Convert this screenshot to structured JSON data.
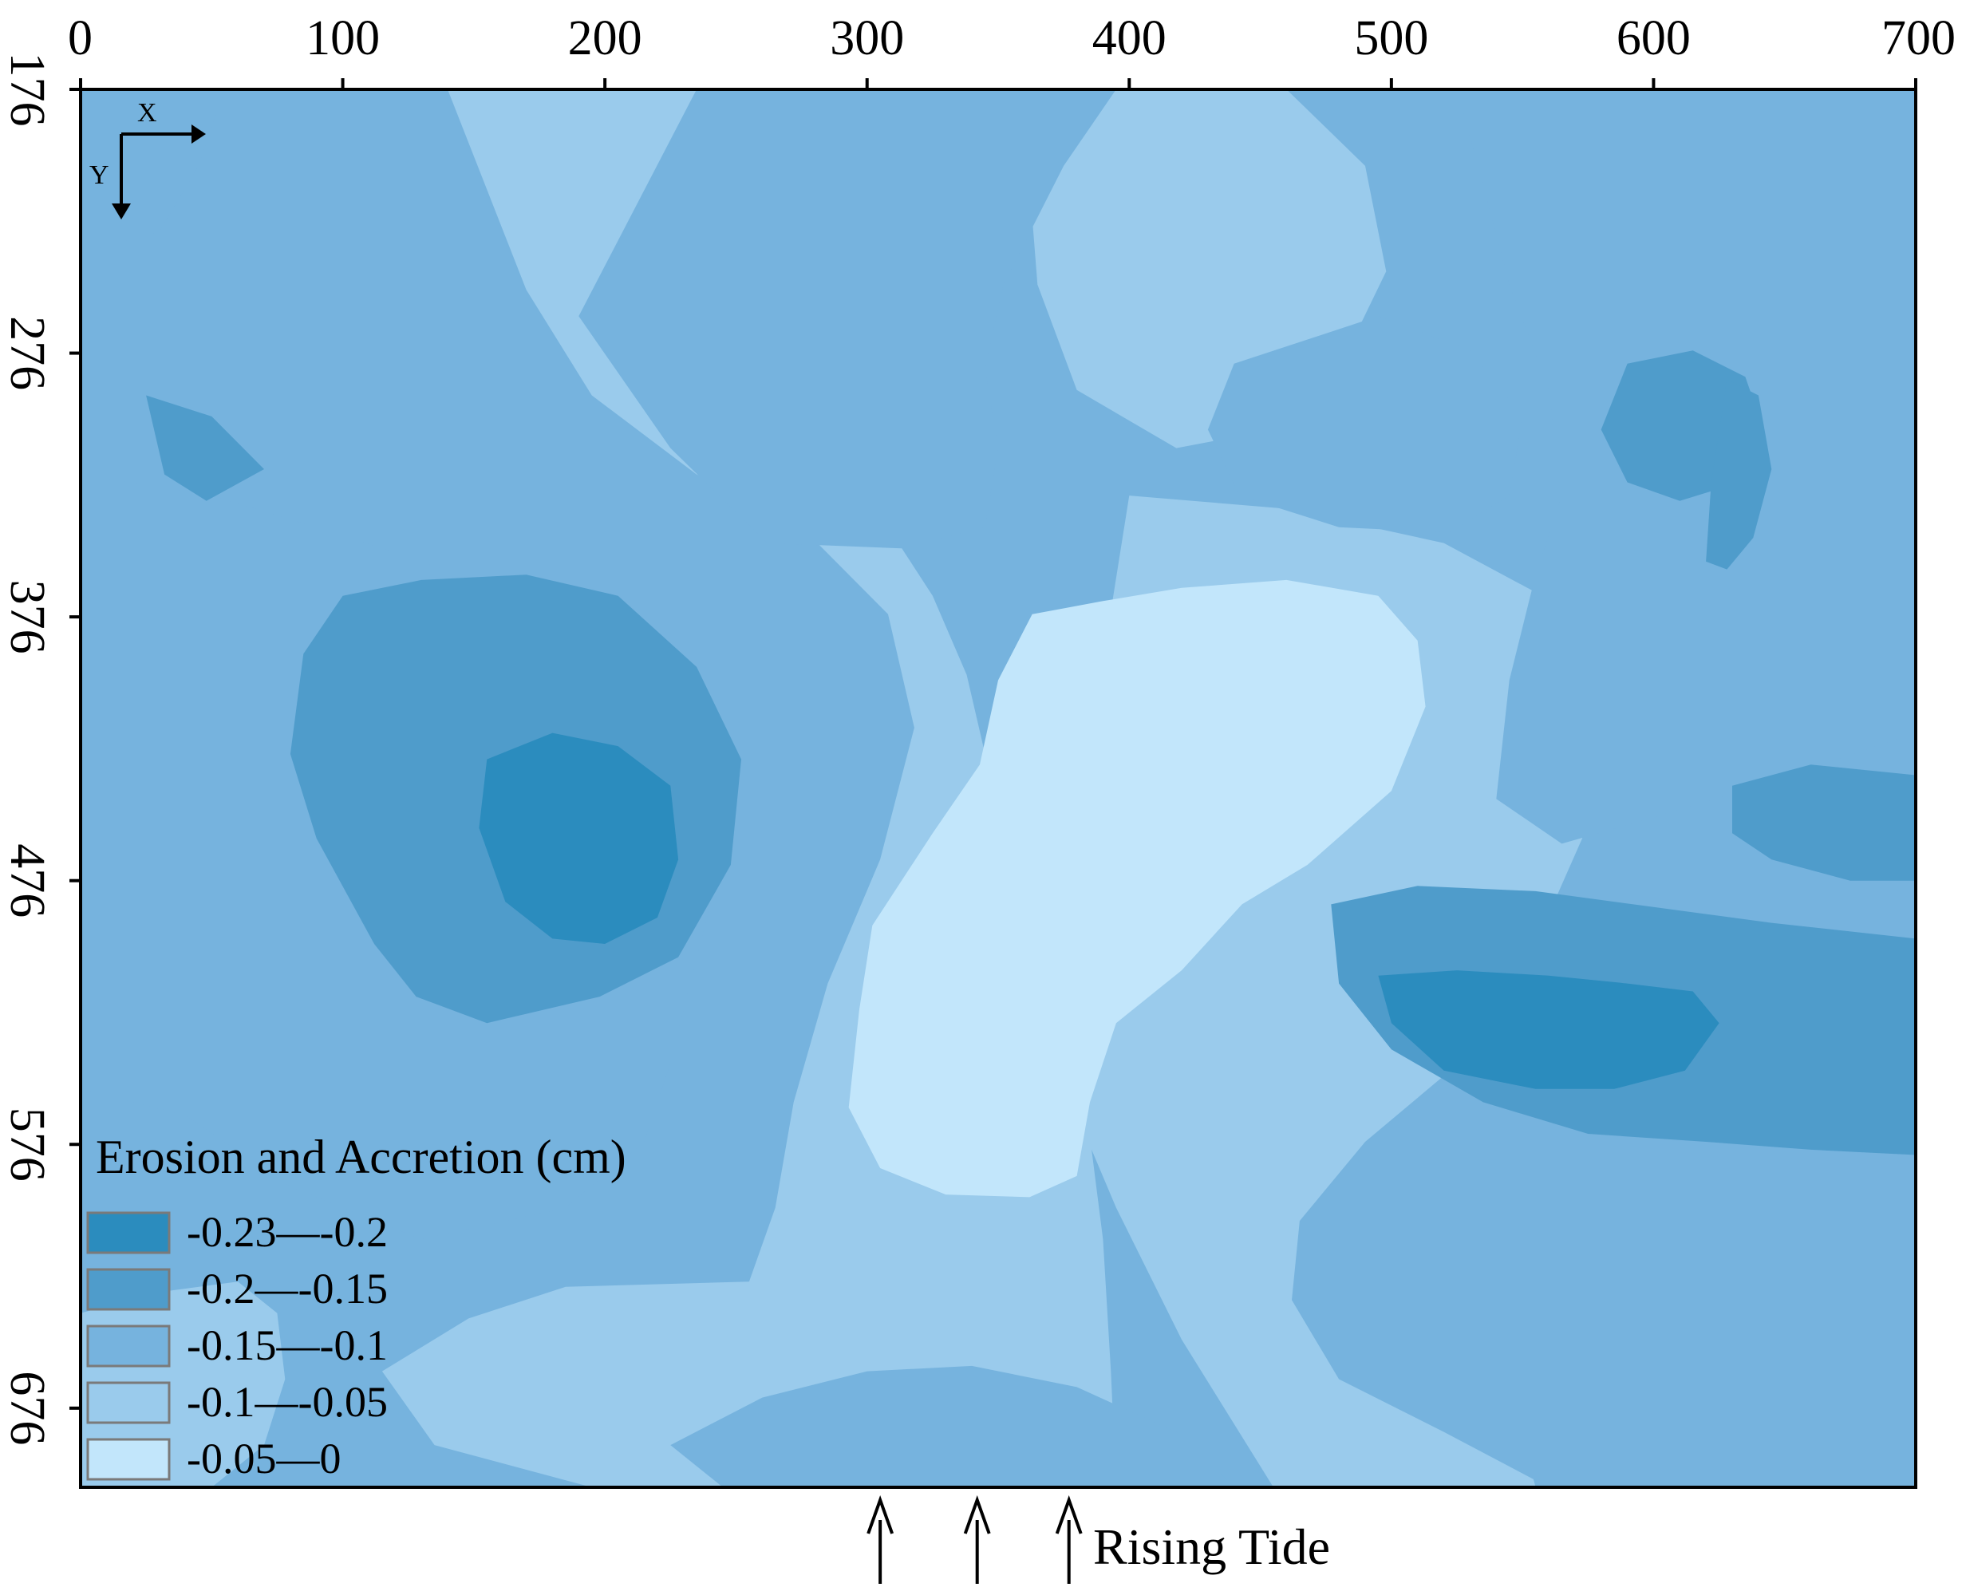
{
  "chart_data": {
    "type": "heatmap",
    "title": "",
    "xlabel": "",
    "ylabel": "",
    "x_axis": {
      "position": "top",
      "range": [
        0,
        700
      ],
      "ticks": [
        0,
        100,
        200,
        300,
        400,
        500,
        600,
        700
      ]
    },
    "y_axis": {
      "position": "left",
      "range": [
        176,
        706
      ],
      "ticks": [
        176,
        276,
        376,
        476,
        576,
        676
      ],
      "tick_orientation": "rotated-90"
    },
    "grid": false,
    "orientation_indicator": {
      "x_label": "X",
      "y_label": "Y"
    },
    "legend": {
      "title": "Erosion and Accretion (cm)",
      "placement": "bottom-left",
      "entries": [
        {
          "label": "-0.23—-0.2",
          "range": [
            -0.23,
            -0.2
          ],
          "color": "#2b8cbe"
        },
        {
          "label": "-0.2—-0.15",
          "range": [
            -0.2,
            -0.15
          ],
          "color": "#4f9ccb"
        },
        {
          "label": "-0.15—-0.1",
          "range": [
            -0.15,
            -0.1
          ],
          "color": "#76b3de"
        },
        {
          "label": "-0.1—-0.05",
          "range": [
            -0.1,
            -0.05
          ],
          "color": "#9acbec"
        },
        {
          "label": "-0.05—0",
          "range": [
            -0.05,
            0
          ],
          "color": "#c2e6fb"
        }
      ]
    },
    "annotations": [
      {
        "text": "Rising Tide",
        "arrows_at_x": [
          305,
          342,
          377
        ]
      }
    ],
    "regions": [
      {
        "class": 3,
        "polygon": [
          [
            0,
            176
          ],
          [
            700,
            176
          ],
          [
            700,
            706
          ],
          [
            0,
            706
          ]
        ]
      },
      {
        "class": 4,
        "polygon": [
          [
            140,
            176
          ],
          [
            350,
            176
          ],
          [
            345,
            205
          ],
          [
            315,
            245
          ],
          [
            295,
            282
          ],
          [
            293,
            312
          ],
          [
            308,
            342
          ],
          [
            325,
            368
          ],
          [
            338,
            398
          ],
          [
            345,
            428
          ],
          [
            350,
            448
          ],
          [
            355,
            478
          ],
          [
            365,
            518
          ],
          [
            378,
            548
          ],
          [
            385,
            573
          ],
          [
            390,
            612
          ],
          [
            393,
            662
          ],
          [
            395,
            706
          ],
          [
            195,
            706
          ],
          [
            135,
            690
          ],
          [
            115,
            662
          ],
          [
            148,
            642
          ],
          [
            185,
            630
          ],
          [
            255,
            628
          ],
          [
            265,
            600
          ],
          [
            272,
            560
          ],
          [
            285,
            515
          ],
          [
            305,
            468
          ],
          [
            318,
            418
          ],
          [
            308,
            375
          ],
          [
            275,
            342
          ],
          [
            235,
            322
          ],
          [
            195,
            292
          ],
          [
            170,
            252
          ]
        ]
      },
      {
        "class": 4,
        "polygon": [
          [
            370,
            176
          ],
          [
            460,
            176
          ],
          [
            490,
            205
          ],
          [
            498,
            245
          ],
          [
            480,
            282
          ],
          [
            455,
            305
          ],
          [
            418,
            312
          ],
          [
            380,
            290
          ],
          [
            365,
            250
          ],
          [
            362,
            212
          ]
        ]
      },
      {
        "class": 4,
        "polygon": [
          [
            400,
            330
          ],
          [
            460,
            335
          ],
          [
            520,
            348
          ],
          [
            565,
            372
          ],
          [
            580,
            405
          ],
          [
            575,
            455
          ],
          [
            555,
            500
          ],
          [
            540,
            545
          ],
          [
            535,
            600
          ],
          [
            540,
            650
          ],
          [
            555,
            706
          ],
          [
            455,
            706
          ],
          [
            420,
            650
          ],
          [
            395,
            600
          ],
          [
            378,
            560
          ],
          [
            368,
            520
          ],
          [
            375,
            470
          ],
          [
            385,
            430
          ],
          [
            392,
            380
          ]
        ]
      },
      {
        "class": 4,
        "polygon": [
          [
            0,
            176
          ],
          [
            50,
            176
          ],
          [
            30,
            182
          ],
          [
            18,
            198
          ],
          [
            0,
            205
          ]
        ]
      },
      {
        "class": 4,
        "polygon": [
          [
            580,
            230
          ],
          [
            620,
            210
          ],
          [
            660,
            196
          ],
          [
            700,
            188
          ],
          [
            700,
            225
          ],
          [
            665,
            236
          ],
          [
            625,
            247
          ],
          [
            595,
            250
          ]
        ]
      },
      {
        "class": 4,
        "polygon": [
          [
            590,
            218
          ],
          [
            604,
            196
          ],
          [
            618,
            190
          ],
          [
            626,
            196
          ],
          [
            626,
            216
          ],
          [
            616,
            232
          ],
          [
            600,
            235
          ]
        ]
      },
      {
        "class": 4,
        "polygon": [
          [
            0,
            640
          ],
          [
            30,
            632
          ],
          [
            60,
            628
          ],
          [
            75,
            640
          ],
          [
            78,
            665
          ],
          [
            70,
            690
          ],
          [
            50,
            706
          ],
          [
            0,
            706
          ]
        ]
      },
      {
        "class": 4,
        "polygon": [
          [
            560,
            651
          ],
          [
            590,
            658
          ],
          [
            620,
            676
          ],
          [
            640,
            698
          ],
          [
            645,
            706
          ],
          [
            560,
            706
          ],
          [
            550,
            692
          ],
          [
            552,
            670
          ]
        ]
      },
      {
        "class": 5,
        "polygon": [
          [
            290,
            240
          ],
          [
            307,
            238
          ],
          [
            320,
            248
          ],
          [
            325,
            265
          ],
          [
            318,
            290
          ],
          [
            305,
            306
          ],
          [
            293,
            300
          ],
          [
            286,
            282
          ],
          [
            283,
            260
          ]
        ]
      },
      {
        "class": 5,
        "polygon": [
          [
            390,
            370
          ],
          [
            420,
            365
          ],
          [
            460,
            362
          ],
          [
            495,
            368
          ],
          [
            510,
            385
          ],
          [
            513,
            410
          ],
          [
            500,
            442
          ],
          [
            468,
            470
          ],
          [
            443,
            485
          ],
          [
            420,
            510
          ],
          [
            395,
            530
          ],
          [
            385,
            560
          ],
          [
            380,
            588
          ],
          [
            362,
            596
          ],
          [
            330,
            595
          ],
          [
            305,
            585
          ],
          [
            293,
            562
          ],
          [
            297,
            525
          ],
          [
            302,
            493
          ],
          [
            325,
            458
          ],
          [
            343,
            432
          ],
          [
            350,
            400
          ],
          [
            363,
            375
          ]
        ]
      },
      {
        "class": 3,
        "polygon": [
          [
            235,
            176
          ],
          [
            395,
            176
          ],
          [
            375,
            205
          ],
          [
            352,
            250
          ],
          [
            345,
            282
          ],
          [
            350,
            312
          ],
          [
            345,
            342
          ],
          [
            313,
            350
          ],
          [
            262,
            348
          ],
          [
            225,
            312
          ],
          [
            190,
            262
          ]
        ]
      },
      {
        "class": 3,
        "polygon": [
          [
            0,
            322
          ],
          [
            50,
            330
          ],
          [
            100,
            345
          ],
          [
            160,
            365
          ],
          [
            210,
            378
          ],
          [
            240,
            405
          ],
          [
            248,
            455
          ],
          [
            235,
            505
          ],
          [
            225,
            545
          ],
          [
            215,
            575
          ],
          [
            185,
            600
          ],
          [
            130,
            612
          ],
          [
            80,
            592
          ],
          [
            40,
            565
          ],
          [
            0,
            555
          ]
        ]
      },
      {
        "class": 3,
        "polygon": [
          [
            440,
            280
          ],
          [
            495,
            262
          ],
          [
            530,
            275
          ],
          [
            550,
            300
          ],
          [
            545,
            330
          ],
          [
            522,
            344
          ],
          [
            480,
            342
          ],
          [
            442,
            330
          ],
          [
            430,
            305
          ]
        ]
      },
      {
        "class": 3,
        "polygon": [
          [
            465,
            605
          ],
          [
            490,
            575
          ],
          [
            520,
            550
          ],
          [
            560,
            528
          ],
          [
            600,
            508
          ],
          [
            645,
            500
          ],
          [
            700,
            498
          ],
          [
            700,
            706
          ],
          [
            560,
            706
          ],
          [
            520,
            685
          ],
          [
            480,
            665
          ],
          [
            462,
            635
          ]
        ]
      },
      {
        "class": 3,
        "polygon": [
          [
            525,
            176
          ],
          [
            700,
            176
          ],
          [
            700,
            420
          ],
          [
            670,
            430
          ],
          [
            640,
            440
          ],
          [
            600,
            452
          ],
          [
            565,
            462
          ],
          [
            540,
            445
          ],
          [
            545,
            400
          ],
          [
            555,
            360
          ],
          [
            565,
            330
          ],
          [
            560,
            290
          ],
          [
            545,
            250
          ],
          [
            535,
            212
          ]
        ]
      },
      {
        "class": 3,
        "polygon": [
          [
            225,
            690
          ],
          [
            260,
            672
          ],
          [
            300,
            662
          ],
          [
            340,
            660
          ],
          [
            380,
            668
          ],
          [
            420,
            686
          ],
          [
            440,
            706
          ],
          [
            245,
            706
          ]
        ]
      },
      {
        "class": 3,
        "polygon": [
          [
            0,
            176
          ],
          [
            55,
            176
          ],
          [
            45,
            205
          ],
          [
            30,
            230
          ],
          [
            0,
            238
          ]
        ]
      },
      {
        "class": 2,
        "polygon": [
          [
            130,
            362
          ],
          [
            170,
            360
          ],
          [
            205,
            368
          ],
          [
            235,
            395
          ],
          [
            252,
            430
          ],
          [
            248,
            470
          ],
          [
            228,
            505
          ],
          [
            198,
            520
          ],
          [
            155,
            530
          ],
          [
            128,
            520
          ],
          [
            112,
            500
          ],
          [
            90,
            460
          ],
          [
            80,
            428
          ],
          [
            85,
            390
          ],
          [
            100,
            368
          ]
        ]
      },
      {
        "class": 2,
        "polygon": [
          [
            477,
            485
          ],
          [
            510,
            478
          ],
          [
            555,
            480
          ],
          [
            600,
            486
          ],
          [
            645,
            492
          ],
          [
            700,
            498
          ],
          [
            700,
            580
          ],
          [
            660,
            578
          ],
          [
            620,
            575
          ],
          [
            575,
            572
          ],
          [
            535,
            560
          ],
          [
            500,
            540
          ],
          [
            480,
            515
          ]
        ]
      },
      {
        "class": 2,
        "polygon": [
          [
            590,
            280
          ],
          [
            615,
            275
          ],
          [
            635,
            285
          ],
          [
            642,
            305
          ],
          [
            633,
            325
          ],
          [
            610,
            332
          ],
          [
            590,
            325
          ],
          [
            580,
            305
          ]
        ]
      },
      {
        "class": 2,
        "polygon": [
          [
            628,
            286
          ],
          [
            640,
            292
          ],
          [
            645,
            320
          ],
          [
            638,
            346
          ],
          [
            628,
            358
          ],
          [
            620,
            355
          ],
          [
            622,
            325
          ]
        ]
      },
      {
        "class": 2,
        "polygon": [
          [
            25,
            292
          ],
          [
            50,
            300
          ],
          [
            70,
            320
          ],
          [
            48,
            332
          ],
          [
            32,
            322
          ]
        ]
      },
      {
        "class": 2,
        "polygon": [
          [
            630,
            440
          ],
          [
            660,
            432
          ],
          [
            700,
            436
          ],
          [
            700,
            476
          ],
          [
            675,
            476
          ],
          [
            645,
            468
          ],
          [
            630,
            458
          ]
        ]
      },
      {
        "class": 1,
        "polygon": [
          [
            155,
            430
          ],
          [
            180,
            420
          ],
          [
            205,
            425
          ],
          [
            225,
            440
          ],
          [
            228,
            468
          ],
          [
            220,
            490
          ],
          [
            200,
            500
          ],
          [
            180,
            498
          ],
          [
            162,
            484
          ],
          [
            152,
            456
          ]
        ]
      },
      {
        "class": 1,
        "polygon": [
          [
            495,
            512
          ],
          [
            525,
            510
          ],
          [
            560,
            512
          ],
          [
            590,
            515
          ],
          [
            615,
            518
          ],
          [
            625,
            530
          ],
          [
            612,
            548
          ],
          [
            585,
            555
          ],
          [
            555,
            555
          ],
          [
            520,
            548
          ],
          [
            500,
            530
          ]
        ]
      }
    ]
  }
}
